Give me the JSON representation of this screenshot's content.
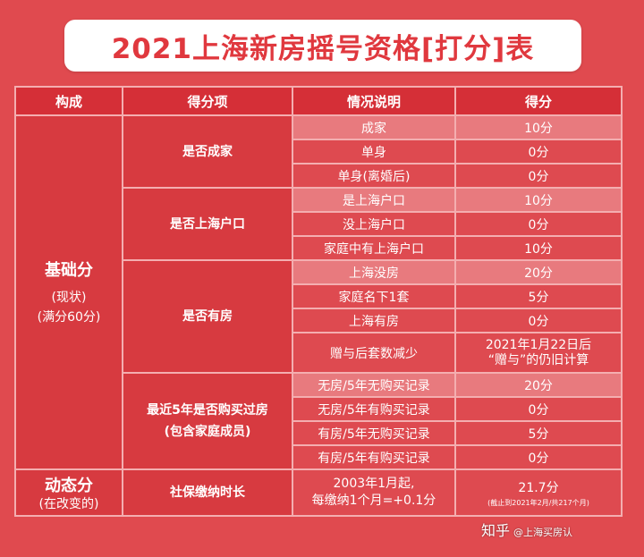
{
  "title": "2021上海新房摇号资格[打分]表",
  "headers": [
    "构成",
    "得分项",
    "情况说明",
    "得分"
  ],
  "base": {
    "label": "基础分",
    "sub1": "(现状)",
    "sub2": "(满分60分)"
  },
  "groups": [
    {
      "item": "是否成家",
      "rows": [
        {
          "desc": "成家",
          "score": "10分"
        },
        {
          "desc": "单身",
          "score": "0分"
        },
        {
          "desc": "单身(离婚后)",
          "score": "0分"
        }
      ]
    },
    {
      "item": "是否上海户口",
      "rows": [
        {
          "desc": "是上海户口",
          "score": "10分"
        },
        {
          "desc": "没上海户口",
          "score": "0分"
        },
        {
          "desc": "家庭中有上海户口",
          "score": "10分"
        }
      ]
    },
    {
      "item": "是否有房",
      "rows": [
        {
          "desc": "上海没房",
          "score": "20分"
        },
        {
          "desc": "家庭名下1套",
          "score": "5分"
        },
        {
          "desc": "上海有房",
          "score": "0分"
        },
        {
          "desc": "赠与后套数减少",
          "score_line1": "2021年1月22日后",
          "score_line2": "“赠与”的仍旧计算"
        }
      ]
    },
    {
      "item_line1": "最近5年是否购买过房",
      "item_line2": "(包含家庭成员)",
      "rows": [
        {
          "desc": "无房/5年无购买记录",
          "score": "20分"
        },
        {
          "desc": "无房/5年有购买记录",
          "score": "0分"
        },
        {
          "desc": "有房/5年无购买记录",
          "score": "5分"
        },
        {
          "desc": "有房/5年有购买记录",
          "score": "0分"
        }
      ]
    }
  ],
  "dynamic": {
    "label": "动态分",
    "sub": "(在改变的)",
    "item": "社保缴纳时长",
    "desc_line1": "2003年1月起,",
    "desc_line2": "每缴纳1个月=+0.1分",
    "score": "21.7分",
    "score_note": "(截止到2021年2月/共217个月)"
  },
  "watermark": {
    "text": "知乎",
    "handle": "@上海买房认"
  }
}
